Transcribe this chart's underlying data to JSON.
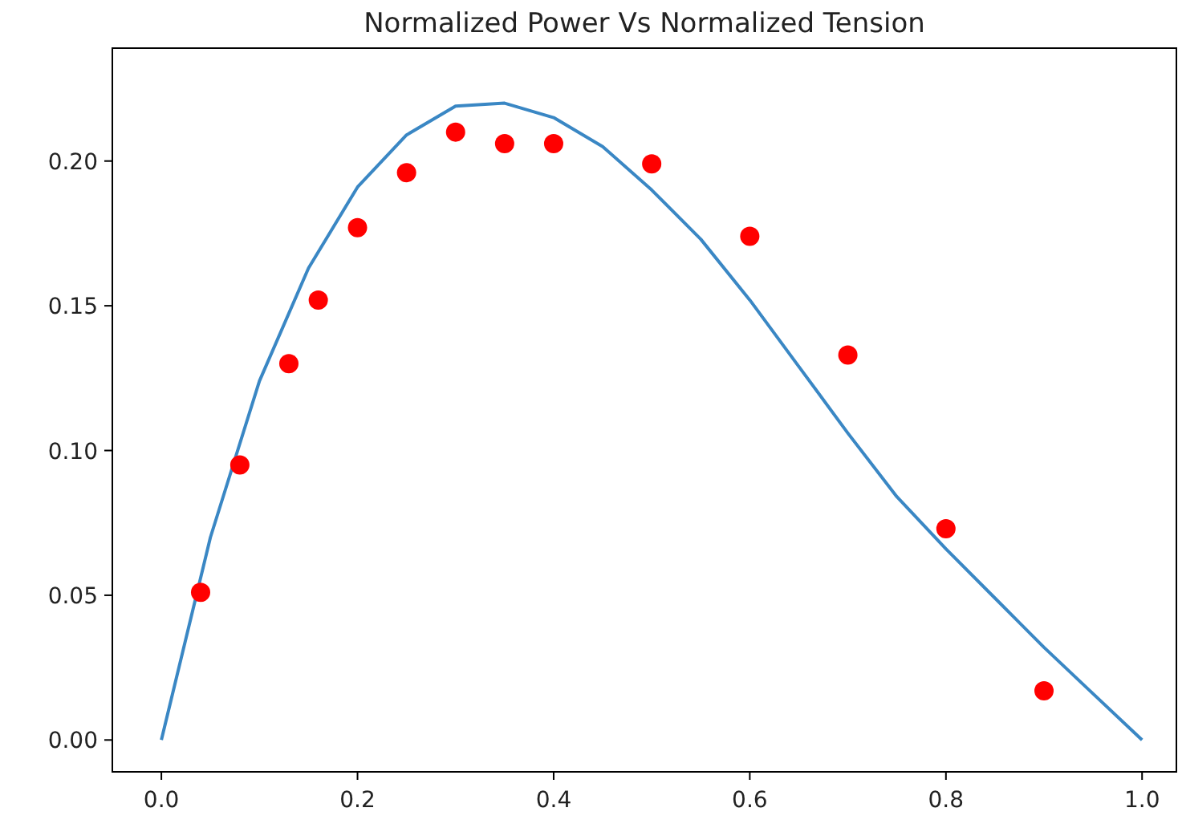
{
  "chart_data": {
    "type": "line",
    "title": "Normalized Power Vs Normalized Tension",
    "xlim": [
      -0.05,
      1.035
    ],
    "ylim": [
      -0.011,
      0.239
    ],
    "xticks": [
      {
        "value": 0,
        "label": "0.0"
      },
      {
        "value": 0.2,
        "label": "0.2"
      },
      {
        "value": 0.4,
        "label": "0.4"
      },
      {
        "value": 0.6,
        "label": "0.6"
      },
      {
        "value": 0.8,
        "label": "0.8"
      },
      {
        "value": 1,
        "label": "1.0"
      }
    ],
    "yticks": [
      {
        "value": 0,
        "label": "0.00"
      },
      {
        "value": 0.05,
        "label": "0.05"
      },
      {
        "value": 0.1,
        "label": "0.10"
      },
      {
        "value": 0.15,
        "label": "0.15"
      },
      {
        "value": 0.2,
        "label": "0.20"
      }
    ],
    "grid": false,
    "series": [
      {
        "type": "line",
        "color": "#3a87c4",
        "marker": "none",
        "line_style": "solid",
        "x": [
          0,
          0.05,
          0.1,
          0.15,
          0.2,
          0.25,
          0.3,
          0.35,
          0.4,
          0.45,
          0.5,
          0.55,
          0.6,
          0.65,
          0.7,
          0.75,
          0.8,
          0.85,
          0.9,
          0.95,
          1.0
        ],
        "values": [
          0,
          0.07,
          0.124,
          0.163,
          0.191,
          0.209,
          0.219,
          0.22,
          0.215,
          0.205,
          0.19,
          0.173,
          0.152,
          0.129,
          0.106,
          0.084,
          0.066,
          0.049,
          0.032,
          0.016,
          0
        ]
      },
      {
        "type": "scatter",
        "color": "#ff0000",
        "marker": "circle",
        "x": [
          0.04,
          0.08,
          0.13,
          0.16,
          0.2,
          0.25,
          0.3,
          0.35,
          0.4,
          0.5,
          0.6,
          0.7,
          0.8,
          0.9
        ],
        "values": [
          0.051,
          0.095,
          0.13,
          0.152,
          0.177,
          0.196,
          0.21,
          0.206,
          0.206,
          0.199,
          0.174,
          0.133,
          0.073,
          0.017
        ]
      }
    ]
  }
}
